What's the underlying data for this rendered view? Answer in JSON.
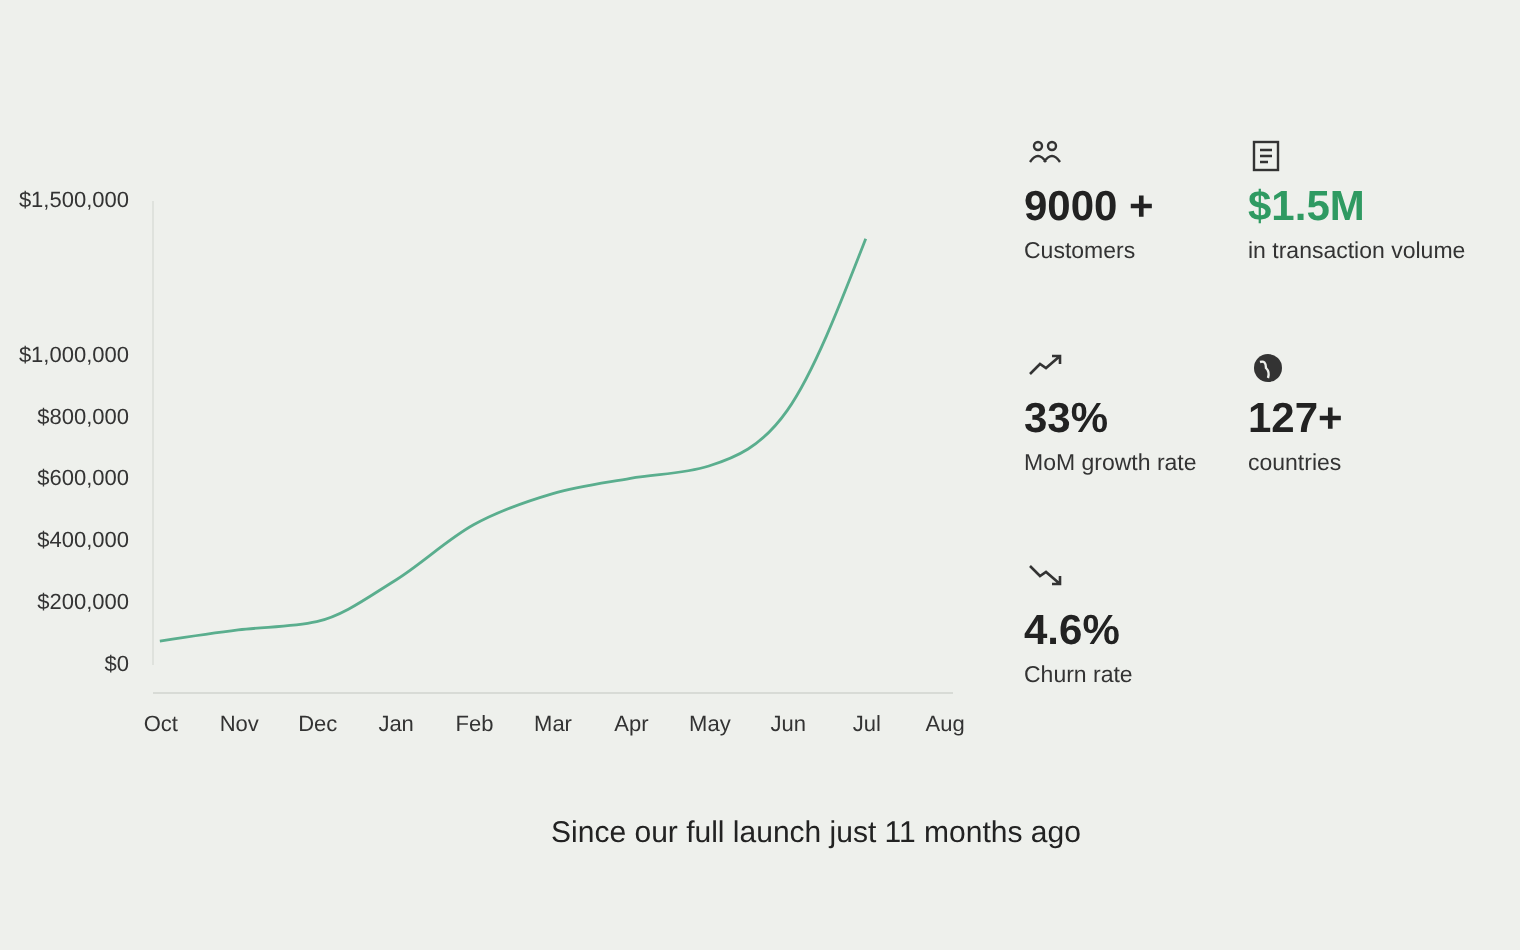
{
  "chart_data": [
    {
      "type": "line",
      "categories": [
        "Oct",
        "Nov",
        "Dec",
        "Jan",
        "Feb",
        "Mar",
        "Apr",
        "May",
        "Jun",
        "Jul",
        "Aug"
      ],
      "series": [
        {
          "color": "#5aae8e",
          "values": [
            74000,
            110000,
            137000,
            270000,
            450000,
            550000,
            600000,
            640000,
            820000,
            1375000,
            null
          ]
        }
      ],
      "ylim": [
        0,
        1500000
      ],
      "yticks": [
        {
          "value": 0,
          "label": "$0"
        },
        {
          "value": 200000,
          "label": "$200,000"
        },
        {
          "value": 400000,
          "label": "$400,000"
        },
        {
          "value": 600000,
          "label": "$600,000"
        },
        {
          "value": 800000,
          "label": "$800,000"
        },
        {
          "value": 1000000,
          "label": "$1,000,000"
        },
        {
          "value": 1500000,
          "label": "$1,500,000"
        }
      ],
      "grid": false,
      "legend": false,
      "annotations": [
        "Since our full launch just 11 months ago"
      ]
    },
    {
      "type": "other",
      "annotations": [
        "9000 +",
        "Customers",
        "$1.5M",
        "in transaction volume",
        "33%",
        "MoM growth rate",
        "127+",
        "countries",
        "4.6%",
        "Churn rate"
      ]
    }
  ]
}
